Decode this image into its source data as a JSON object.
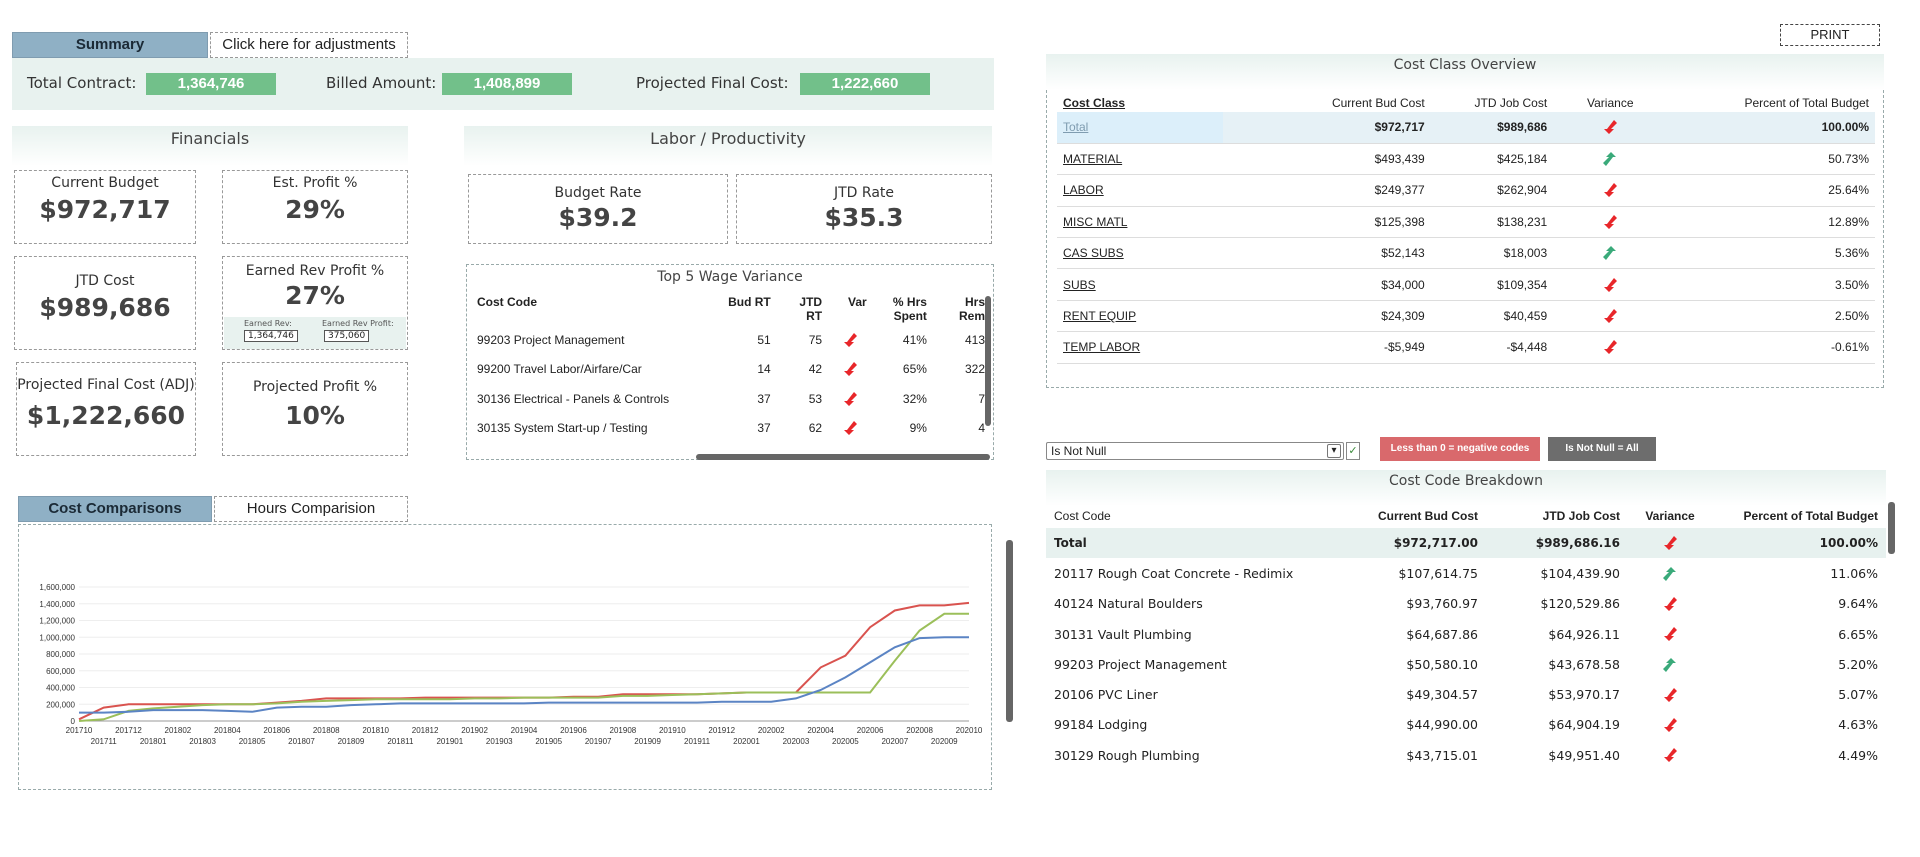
{
  "tabs": {
    "summary": "Summary",
    "adjustments": "Click here for adjustments"
  },
  "print": "PRINT",
  "kpis": [
    {
      "label": "Total Contract:",
      "value": "1,364,746"
    },
    {
      "label": "Billed Amount:",
      "value": "1,408,899"
    },
    {
      "label": "Projected Final Cost:",
      "value": "1,222,660"
    }
  ],
  "financials": {
    "title": "Financials",
    "current_budget_label": "Current Budget",
    "current_budget": "$972,717",
    "est_profit_label": "Est. Profit %",
    "est_profit": "29%",
    "jtd_cost_label": "JTD Cost",
    "jtd_cost": "$989,686",
    "earned_rev_profit_label": "Earned Rev Profit %",
    "earned_rev_profit": "27%",
    "earned_rev_label": "Earned Rev:",
    "earned_rev": "1,364,746",
    "earned_rev_profit_amt_label": "Earned Rev Profit:",
    "earned_rev_profit_amt": "375,060",
    "pfc_label": "Projected Final Cost (ADJ)",
    "pfc": "$1,222,660",
    "proj_profit_label": "Projected Profit %",
    "proj_profit": "10%"
  },
  "labor": {
    "title": "Labor / Productivity",
    "budget_rate_label": "Budget Rate",
    "budget_rate": "$39.2",
    "jtd_rate_label": "JTD Rate",
    "jtd_rate": "$35.3"
  },
  "wage": {
    "title": "Top 5 Wage Variance",
    "headers": [
      "Cost Code",
      "Bud RT",
      "JTD RT",
      "Var",
      "% Hrs Spent",
      "Hrs Rem"
    ],
    "rows": [
      {
        "code": "99203 Project Management",
        "bud": "51",
        "jtd": "75",
        "pct": "41%",
        "rem": "413"
      },
      {
        "code": "99200 Travel Labor/Airfare/Car",
        "bud": "14",
        "jtd": "42",
        "pct": "65%",
        "rem": "322"
      },
      {
        "code": "30136 Electrical - Panels & Controls",
        "bud": "37",
        "jtd": "53",
        "pct": "32%",
        "rem": "7"
      },
      {
        "code": "30135 System Start-up / Testing",
        "bud": "37",
        "jtd": "62",
        "pct": "9%",
        "rem": "4"
      }
    ]
  },
  "cost_class": {
    "title": "Cost Class Overview",
    "headers": [
      "Cost Class",
      "Current Bud Cost",
      "JTD Job Cost",
      "Variance",
      "Percent of Total Budget"
    ],
    "rows": [
      {
        "name": "Total",
        "bud": "$972,717",
        "jtd": "$989,686",
        "dir": "down",
        "pct": "100.00%"
      },
      {
        "name": "MATERIAL",
        "bud": "$493,439",
        "jtd": "$425,184",
        "dir": "up",
        "pct": "50.73%"
      },
      {
        "name": "LABOR",
        "bud": "$249,377",
        "jtd": "$262,904",
        "dir": "down",
        "pct": "25.64%"
      },
      {
        "name": "MISC MATL",
        "bud": "$125,398",
        "jtd": "$138,231",
        "dir": "down",
        "pct": "12.89%"
      },
      {
        "name": "CAS SUBS",
        "bud": "$52,143",
        "jtd": "$18,003",
        "dir": "up",
        "pct": "5.36%"
      },
      {
        "name": "SUBS",
        "bud": "$34,000",
        "jtd": "$109,354",
        "dir": "down",
        "pct": "3.50%"
      },
      {
        "name": "RENT EQUIP",
        "bud": "$24,309",
        "jtd": "$40,459",
        "dir": "down",
        "pct": "2.50%"
      },
      {
        "name": "TEMP LABOR",
        "bud": "-$5,949",
        "jtd": "-$4,448",
        "dir": "down",
        "pct": "-0.61%"
      }
    ]
  },
  "filter": {
    "selected": "Is Not Null",
    "btn_neg": "Less than 0 = negative codes",
    "btn_all": "Is Not Null = All"
  },
  "ccb": {
    "title": "Cost Code Breakdown",
    "headers": [
      "Cost Code",
      "Current Bud Cost",
      "JTD Job Cost",
      "Variance",
      "Percent of Total Budget"
    ],
    "rows": [
      {
        "name": "Total",
        "bud": "$972,717.00",
        "jtd": "$989,686.16",
        "dir": "down",
        "pct": "100.00%"
      },
      {
        "name": "20117 Rough Coat Concrete - Redimix",
        "bud": "$107,614.75",
        "jtd": "$104,439.90",
        "dir": "up",
        "pct": "11.06%"
      },
      {
        "name": "40124 Natural Boulders",
        "bud": "$93,760.97",
        "jtd": "$120,529.86",
        "dir": "down",
        "pct": "9.64%"
      },
      {
        "name": "30131 Vault Plumbing",
        "bud": "$64,687.86",
        "jtd": "$64,926.11",
        "dir": "down",
        "pct": "6.65%"
      },
      {
        "name": "99203 Project Management",
        "bud": "$50,580.10",
        "jtd": "$43,678.58",
        "dir": "up",
        "pct": "5.20%"
      },
      {
        "name": "20106 PVC Liner",
        "bud": "$49,304.57",
        "jtd": "$53,970.17",
        "dir": "down",
        "pct": "5.07%"
      },
      {
        "name": "99184 Lodging",
        "bud": "$44,990.00",
        "jtd": "$64,904.19",
        "dir": "down",
        "pct": "4.63%"
      },
      {
        "name": "30129 Rough Plumbing",
        "bud": "$43,715.01",
        "jtd": "$49,951.40",
        "dir": "down",
        "pct": "4.49%"
      }
    ]
  },
  "chart_tabs": {
    "cost": "Cost Comparisons",
    "hours": "Hours Comparision"
  },
  "icons": {
    "down": "red-down-arrow-icon",
    "up": "green-up-arrow-icon"
  },
  "colors": {
    "red": "#d9534f",
    "green": "#9bbf5a",
    "blue": "#5b84c4",
    "kpi": "#72c08a",
    "arrow_down": "#e8262a",
    "arrow_up": "#3aaa7a"
  },
  "chart_data": {
    "type": "line",
    "x": [
      "201710",
      "201711",
      "201712",
      "201801",
      "201802",
      "201803",
      "201804",
      "201805",
      "201806",
      "201807",
      "201808",
      "201809",
      "201810",
      "201811",
      "201812",
      "201901",
      "201902",
      "201903",
      "201904",
      "201905",
      "201906",
      "201907",
      "201908",
      "201909",
      "201910",
      "201911",
      "201912",
      "202001",
      "202002",
      "202003",
      "202004",
      "202005",
      "202006",
      "202007",
      "202008",
      "202009",
      "202010"
    ],
    "yticks": [
      "0",
      "200,000",
      "400,000",
      "600,000",
      "800,000",
      "1,000,000",
      "1,200,000",
      "1,400,000",
      "1,600,000"
    ],
    "ylim": [
      0,
      1600000
    ],
    "series": [
      {
        "color": "#d9534f",
        "values": [
          20000,
          160000,
          200000,
          200000,
          200000,
          200000,
          200000,
          200000,
          220000,
          240000,
          270000,
          270000,
          270000,
          270000,
          280000,
          280000,
          280000,
          280000,
          280000,
          280000,
          290000,
          290000,
          320000,
          320000,
          320000,
          320000,
          330000,
          340000,
          340000,
          340000,
          640000,
          780000,
          1120000,
          1320000,
          1380000,
          1380000,
          1410000
        ]
      },
      {
        "color": "#9bbf5a",
        "values": [
          0,
          20000,
          120000,
          150000,
          170000,
          190000,
          200000,
          200000,
          210000,
          230000,
          240000,
          250000,
          260000,
          260000,
          260000,
          260000,
          270000,
          270000,
          280000,
          280000,
          280000,
          280000,
          300000,
          300000,
          310000,
          320000,
          330000,
          340000,
          340000,
          340000,
          340000,
          340000,
          340000,
          720000,
          1080000,
          1280000,
          1280000
        ]
      },
      {
        "color": "#5b84c4",
        "values": [
          100000,
          100000,
          110000,
          130000,
          130000,
          130000,
          120000,
          110000,
          160000,
          170000,
          170000,
          190000,
          200000,
          210000,
          210000,
          210000,
          210000,
          210000,
          210000,
          220000,
          220000,
          220000,
          220000,
          220000,
          220000,
          220000,
          230000,
          230000,
          230000,
          270000,
          370000,
          520000,
          700000,
          880000,
          990000,
          1000000,
          1000000
        ]
      }
    ]
  }
}
